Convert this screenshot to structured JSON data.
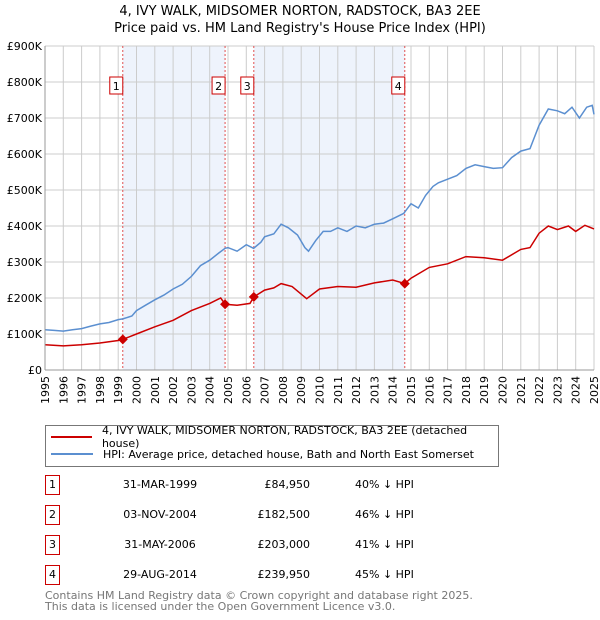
{
  "chart_data": {
    "type": "line",
    "title": "4, IVY WALK, MIDSOMER NORTON, RADSTOCK, BA3 2EE",
    "subtitle": "Price paid vs. HM Land Registry's House Price Index (HPI)",
    "xlim": [
      1995,
      2025
    ],
    "ylim": [
      0,
      900000
    ],
    "x_ticks": [
      "1995",
      "1996",
      "1997",
      "1998",
      "1999",
      "2000",
      "2001",
      "2002",
      "2003",
      "2004",
      "2005",
      "2006",
      "2007",
      "2008",
      "2009",
      "2010",
      "2011",
      "2012",
      "2013",
      "2014",
      "2015",
      "2016",
      "2017",
      "2018",
      "2019",
      "2020",
      "2021",
      "2022",
      "2023",
      "2024",
      "2025"
    ],
    "y_ticks": [
      {
        "v": 0,
        "label": "£0"
      },
      {
        "v": 100000,
        "label": "£100K"
      },
      {
        "v": 200000,
        "label": "£200K"
      },
      {
        "v": 300000,
        "label": "£300K"
      },
      {
        "v": 400000,
        "label": "£400K"
      },
      {
        "v": 500000,
        "label": "£500K"
      },
      {
        "v": 600000,
        "label": "£600K"
      },
      {
        "v": 700000,
        "label": "£700K"
      },
      {
        "v": 800000,
        "label": "£800K"
      },
      {
        "v": 900000,
        "label": "£900K"
      }
    ],
    "grid": true,
    "colors": {
      "property": "#cc0000",
      "hpi": "#5b8fd0",
      "shade": "#eef3fc"
    },
    "series": [
      {
        "name": "4, IVY WALK, MIDSOMER NORTON, RADSTOCK, BA3 2EE (detached house)",
        "x": [
          1995,
          1996,
          1997,
          1998,
          1999,
          1999.25,
          2000,
          2001,
          2002,
          2003,
          2004,
          2004.6,
          2004.84,
          2005.5,
          2006.2,
          2006.41,
          2007,
          2007.5,
          2007.9,
          2008.5,
          2009.3,
          2010,
          2011,
          2012,
          2013,
          2014,
          2014.66,
          2015,
          2016,
          2017,
          2018,
          2019,
          2020,
          2021,
          2021.5,
          2022,
          2022.5,
          2023,
          2023.6,
          2024,
          2024.5,
          2025
        ],
        "y": [
          70000,
          67000,
          70000,
          75000,
          82000,
          84950,
          100000,
          120000,
          138000,
          165000,
          185000,
          200000,
          182500,
          180000,
          185000,
          203000,
          222000,
          228000,
          240000,
          232000,
          198000,
          225000,
          232000,
          230000,
          242000,
          250000,
          239950,
          255000,
          285000,
          295000,
          315000,
          312000,
          305000,
          335000,
          340000,
          380000,
          400000,
          390000,
          400000,
          385000,
          402000,
          392000
        ]
      },
      {
        "name": "HPI: Average price, detached house, Bath and North East Somerset",
        "x": [
          1995,
          1995.5,
          1996,
          1996.5,
          1997,
          1997.5,
          1998,
          1998.5,
          1999,
          1999.25,
          1999.75,
          2000,
          2000.5,
          2001,
          2001.5,
          2002,
          2002.5,
          2003,
          2003.5,
          2004,
          2004.5,
          2004.84,
          2005,
          2005.5,
          2006,
          2006.4,
          2006.8,
          2007,
          2007.5,
          2007.9,
          2008.3,
          2008.8,
          2009.2,
          2009.4,
          2009.8,
          2010.2,
          2010.6,
          2011,
          2011.5,
          2012,
          2012.5,
          2013,
          2013.5,
          2014,
          2014.6,
          2015,
          2015.4,
          2015.8,
          2016.2,
          2016.5,
          2017,
          2017.5,
          2018,
          2018.5,
          2019,
          2019.5,
          2020,
          2020.5,
          2021,
          2021.5,
          2022,
          2022.5,
          2023,
          2023.4,
          2023.8,
          2024.2,
          2024.6,
          2024.9,
          2025
        ],
        "y": [
          112000,
          110000,
          108000,
          112000,
          115000,
          122000,
          128000,
          132000,
          140000,
          142000,
          150000,
          165000,
          180000,
          195000,
          208000,
          225000,
          238000,
          260000,
          290000,
          305000,
          325000,
          338000,
          340000,
          330000,
          348000,
          338000,
          355000,
          370000,
          378000,
          405000,
          395000,
          375000,
          340000,
          330000,
          360000,
          385000,
          385000,
          395000,
          385000,
          400000,
          395000,
          405000,
          408000,
          420000,
          435000,
          462000,
          450000,
          485000,
          510000,
          520000,
          530000,
          540000,
          560000,
          570000,
          565000,
          560000,
          562000,
          590000,
          608000,
          615000,
          680000,
          725000,
          720000,
          712000,
          730000,
          700000,
          730000,
          735000,
          710000
        ]
      }
    ],
    "sales": [
      {
        "n": "1",
        "x": 1999.25,
        "date": "31-MAR-1999",
        "price": 84950,
        "price_label": "£84,950",
        "hpi": "40% ↓ HPI"
      },
      {
        "n": "2",
        "x": 2004.84,
        "date": "03-NOV-2004",
        "price": 182500,
        "price_label": "£182,500",
        "hpi": "46% ↓ HPI"
      },
      {
        "n": "3",
        "x": 2006.41,
        "date": "31-MAY-2006",
        "price": 203000,
        "price_label": "£203,000",
        "hpi": "41% ↓ HPI"
      },
      {
        "n": "4",
        "x": 2014.66,
        "date": "29-AUG-2014",
        "price": 239950,
        "price_label": "£239,950",
        "hpi": "45% ↓ HPI"
      }
    ],
    "shaded_ranges": [
      [
        1999.25,
        2004.84
      ],
      [
        2006.41,
        2014.66
      ]
    ],
    "legend": [
      "4, IVY WALK, MIDSOMER NORTON, RADSTOCK, BA3 2EE (detached house)",
      "HPI: Average price, detached house, Bath and North East Somerset"
    ],
    "legend_placement": "below"
  },
  "footer": [
    "Contains HM Land Registry data © Crown copyright and database right 2025.",
    "This data is licensed under the Open Government Licence v3.0."
  ]
}
